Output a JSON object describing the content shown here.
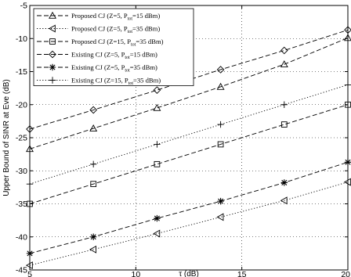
{
  "chart_data": {
    "type": "line",
    "title": "",
    "xlabel": "τ (dB)",
    "ylabel": "Upper Bound of SINR at Eve (dB)",
    "xlim": [
      5,
      20
    ],
    "ylim": [
      -45,
      -5
    ],
    "xticks": [
      5,
      10,
      15,
      20
    ],
    "yticks": [
      -45,
      -40,
      -35,
      -30,
      -25,
      -20,
      -15,
      -10,
      -5
    ],
    "grid": true,
    "legend_position": "top-left",
    "series": [
      {
        "name": "Proposed CJ (Z=5, P_tot=15 dBm)",
        "legend": {
          "pre": "Proposed CJ (Z=5, P",
          "sub": "tot",
          "post": "=15 dBm)"
        },
        "marker": "triangle-up",
        "line": "dashed",
        "x": [
          5,
          8,
          11,
          14,
          17,
          20
        ],
        "y": [
          -26.7,
          -23.6,
          -20.5,
          -17.3,
          -13.9,
          -9.9
        ]
      },
      {
        "name": "Proposed CJ (Z=5, P_tot=35 dBm)",
        "legend": {
          "pre": "Proposed CJ (Z=5, P",
          "sub": "tot",
          "post": "=35 dBm)"
        },
        "marker": "triangle-left",
        "line": "dotted",
        "x": [
          5,
          8,
          11,
          14,
          17,
          20
        ],
        "y": [
          -44.3,
          -41.9,
          -39.5,
          -37.0,
          -34.5,
          -31.7
        ]
      },
      {
        "name": "Proposed CJ (Z=15, P_tot=35 dBm)",
        "legend": {
          "pre": "Proposed CJ (Z=15, P",
          "sub": "tot",
          "post": "=35 dBm)"
        },
        "marker": "square",
        "line": "dashed",
        "x": [
          5,
          8,
          11,
          14,
          17,
          20
        ],
        "y": [
          -35.0,
          -32.0,
          -29.0,
          -26.0,
          -23.0,
          -20.0
        ]
      },
      {
        "name": "Existing CJ (Z=5, P_tot=15 dBm)",
        "legend": {
          "pre": "Existing CJ (Z=5, P",
          "sub": "tot",
          "post": "=15 dBm)"
        },
        "marker": "diamond",
        "line": "dashed",
        "x": [
          5,
          8,
          11,
          14,
          17,
          20
        ],
        "y": [
          -23.7,
          -20.8,
          -17.8,
          -14.7,
          -11.8,
          -8.7
        ]
      },
      {
        "name": "Existing CJ (Z=5, P_tot=35 dBm)",
        "legend": {
          "pre": "Existing CJ (Z=5, P",
          "sub": "tot",
          "post": "=35 dBm)"
        },
        "marker": "asterisk",
        "line": "dashed",
        "x": [
          5,
          8,
          11,
          14,
          17,
          20
        ],
        "y": [
          -42.5,
          -40.0,
          -37.2,
          -34.6,
          -31.8,
          -28.7
        ]
      },
      {
        "name": "Existing CJ (Z=15, P_tot=35 dBm)",
        "legend": {
          "pre": "Existing CJ (Z=15, P",
          "sub": "tot",
          "post": "=35 dBm)"
        },
        "marker": "plus",
        "line": "dotted",
        "x": [
          5,
          8,
          11,
          14,
          17,
          20
        ],
        "y": [
          -32.0,
          -29.0,
          -26.0,
          -23.0,
          -20.0,
          -17.0
        ]
      }
    ]
  }
}
